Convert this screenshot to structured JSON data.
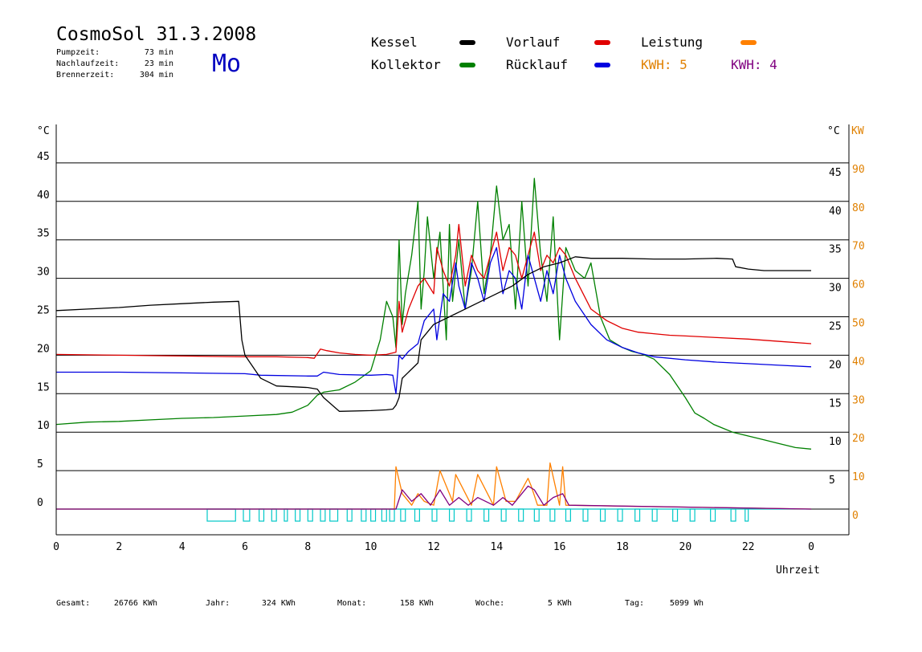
{
  "header": {
    "title": "CosmoSol 31.3.2008",
    "weekday": "Mo",
    "stats": [
      {
        "label": "Pumpzeit:",
        "value": "73 min"
      },
      {
        "label": "Nachlaufzeit:",
        "value": "23 min"
      },
      {
        "label": "Brennerzeit:",
        "value": "304 min"
      }
    ]
  },
  "legend": {
    "items": [
      {
        "label": "Kessel",
        "color": "#000000"
      },
      {
        "label": "Vorlauf",
        "color": "#e00000"
      },
      {
        "label": "Leistung",
        "color": "#ff8000"
      },
      {
        "label": "Kollektor",
        "color": "#008000"
      },
      {
        "label": "Rücklauf",
        "color": "#0000e0"
      }
    ],
    "kwh": [
      {
        "label": "KWH: 5",
        "color": "#e08000"
      },
      {
        "label": "KWH: 4",
        "color": "#800080"
      }
    ]
  },
  "footer": [
    {
      "label": "Gesamt:",
      "value": "26766 KWh"
    },
    {
      "label": "Jahr:",
      "value": "324 KWh"
    },
    {
      "label": "Monat:",
      "value": "158 KWh"
    },
    {
      "label": "Woche:",
      "value": "5 KWh"
    },
    {
      "label": "Tag:",
      "value": "5099 Wh"
    }
  ],
  "chart_data": {
    "type": "line",
    "xlabel": "Uhrzeit",
    "ylabel": "°C",
    "y2label": "KW",
    "ylabel_right": "°C",
    "xlim": [
      0,
      24
    ],
    "ylim": [
      0,
      50
    ],
    "y2lim": [
      0,
      100
    ],
    "grid": true,
    "x_ticks": [
      "0",
      "2",
      "4",
      "6",
      "8",
      "10",
      "12",
      "14",
      "16",
      "18",
      "20",
      "22",
      "0"
    ],
    "y_ticks": [
      "0",
      "5",
      "10",
      "15",
      "20",
      "25",
      "30",
      "35",
      "40",
      "45"
    ],
    "y_ticks_right": [
      "5",
      "10",
      "15",
      "20",
      "25",
      "30",
      "35",
      "40",
      "45"
    ],
    "y2_ticks": [
      "0",
      "10",
      "20",
      "30",
      "40",
      "50",
      "60",
      "70",
      "80",
      "90"
    ],
    "series": [
      {
        "name": "Kollektor",
        "color": "#008000",
        "x": [
          0,
          1,
          2,
          3,
          4,
          5,
          6,
          7,
          7.5,
          8,
          8.3,
          8.5,
          9,
          9.5,
          10,
          10.3,
          10.5,
          10.7,
          10.8,
          10.9,
          11,
          11.1,
          11.3,
          11.5,
          11.6,
          11.7,
          11.8,
          12,
          12.2,
          12.4,
          12.5,
          12.6,
          12.8,
          13,
          13.2,
          13.4,
          13.6,
          13.8,
          14,
          14.2,
          14.4,
          14.6,
          14.8,
          15,
          15.2,
          15.4,
          15.6,
          15.8,
          16,
          16.2,
          16.5,
          16.8,
          17,
          17.3,
          17.6,
          18,
          18.3,
          18.6,
          19,
          19.5,
          20,
          20.3,
          20.6,
          20.9,
          21.2,
          21.5,
          22,
          22.5,
          23,
          23.5,
          24
        ],
        "y": [
          11,
          11.3,
          11.4,
          11.6,
          11.8,
          11.9,
          12.1,
          12.3,
          12.6,
          13.5,
          14.8,
          15.2,
          15.5,
          16.5,
          18,
          22,
          27,
          25,
          21,
          35,
          24,
          28,
          33,
          40,
          26,
          31,
          38,
          30,
          36,
          22,
          37,
          27,
          35,
          26,
          31,
          40,
          28,
          33,
          42,
          35,
          37,
          26,
          40,
          29,
          43,
          33,
          27,
          38,
          22,
          34,
          31,
          30,
          32,
          25,
          22,
          21,
          20.5,
          20.2,
          19.5,
          17.5,
          14.5,
          12.5,
          11.8,
          11,
          10.5,
          10,
          9.5,
          9,
          8.5,
          8,
          7.8
        ]
      },
      {
        "name": "Vorlauf",
        "color": "#e00000",
        "x": [
          0,
          2,
          4,
          6,
          7,
          8,
          8.2,
          8.4,
          8.6,
          9,
          9.5,
          10,
          10.5,
          10.8,
          10.9,
          11,
          11.2,
          11.5,
          11.7,
          12,
          12.1,
          12.3,
          12.5,
          12.7,
          12.8,
          13,
          13.2,
          13.4,
          13.6,
          13.8,
          14,
          14.2,
          14.4,
          14.6,
          14.8,
          15,
          15.2,
          15.4,
          15.6,
          15.8,
          16,
          16.2,
          16.5,
          17,
          17.5,
          18,
          18.5,
          19,
          19.5,
          20,
          21,
          22,
          23,
          24
        ],
        "y": [
          20.1,
          20,
          19.9,
          19.8,
          19.8,
          19.7,
          19.6,
          20.8,
          20.6,
          20.3,
          20.1,
          20,
          20.1,
          20.4,
          27,
          23,
          26,
          29,
          30,
          28,
          34,
          31,
          29,
          33,
          37,
          29,
          33,
          31,
          30,
          33,
          36,
          31,
          34,
          33,
          30,
          33,
          36,
          31,
          33,
          32,
          34,
          33,
          30,
          26,
          24.5,
          23.5,
          23,
          22.8,
          22.6,
          22.5,
          22.3,
          22.1,
          21.8,
          21.5
        ]
      },
      {
        "name": "Rücklauf",
        "color": "#0000e0",
        "x": [
          0,
          2,
          4,
          6,
          6.5,
          8,
          8.3,
          8.5,
          9,
          10,
          10.5,
          10.7,
          10.8,
          10.9,
          11,
          11.2,
          11.5,
          11.7,
          12,
          12.1,
          12.3,
          12.5,
          12.7,
          12.8,
          13,
          13.2,
          13.4,
          13.6,
          13.8,
          14,
          14.2,
          14.4,
          14.6,
          14.8,
          15,
          15.2,
          15.4,
          15.6,
          15.8,
          16,
          16.2,
          16.5,
          17,
          17.5,
          18,
          18.5,
          19,
          20,
          21,
          22,
          23,
          24
        ],
        "y": [
          17.8,
          17.8,
          17.7,
          17.6,
          17.4,
          17.3,
          17.3,
          17.8,
          17.5,
          17.4,
          17.5,
          17.4,
          15,
          20,
          19.5,
          20.5,
          21.5,
          24.5,
          26,
          22,
          28,
          27,
          32,
          29,
          26,
          32,
          30,
          27,
          32,
          34,
          28,
          31,
          30,
          26,
          33,
          30,
          27,
          31,
          28,
          33,
          30,
          27,
          24,
          22,
          21,
          20.3,
          19.8,
          19.4,
          19.1,
          18.9,
          18.7,
          18.5
        ]
      },
      {
        "name": "Kessel",
        "color": "#000000",
        "x": [
          0,
          1,
          2,
          3,
          4,
          5,
          5.8,
          5.9,
          6,
          6.5,
          7,
          8,
          8.3,
          8.5,
          9,
          10,
          10.5,
          10.7,
          10.8,
          10.9,
          11,
          11.5,
          11.6,
          12,
          12.5,
          13,
          13.5,
          14,
          14.5,
          15,
          15.5,
          16,
          16.5,
          17,
          18,
          19,
          20,
          21,
          21.5,
          21.6,
          22,
          22.5,
          23,
          24
        ],
        "y": [
          25.8,
          26,
          26.2,
          26.5,
          26.7,
          26.9,
          27,
          22,
          20,
          17,
          16,
          15.8,
          15.6,
          14.5,
          12.7,
          12.8,
          12.9,
          13,
          13.5,
          14.5,
          17,
          19,
          22,
          24,
          25,
          26,
          27,
          28,
          29,
          30.5,
          31.5,
          32,
          32.8,
          32.6,
          32.6,
          32.5,
          32.5,
          32.6,
          32.5,
          31.5,
          31.2,
          31,
          31,
          31
        ]
      },
      {
        "name": "Leistung",
        "color": "#ff8000",
        "axis": "kw",
        "x": [
          0,
          10.7,
          10.75,
          10.8,
          11,
          11.3,
          11.5,
          11.7,
          12,
          12.2,
          12.6,
          12.7,
          13.2,
          13.4,
          13.9,
          14,
          14.3,
          14.6,
          15,
          15.1,
          15.3,
          15.6,
          15.7,
          16,
          16.1,
          16.2,
          24
        ],
        "y": [
          0,
          0,
          0,
          11,
          4,
          1,
          4,
          2,
          1,
          10,
          2,
          9,
          1,
          9,
          1,
          11,
          2,
          2,
          8,
          6,
          1,
          1,
          12,
          1,
          11,
          1,
          0
        ]
      },
      {
        "name": "Leistung (2)",
        "color": "#800080",
        "axis": "kw",
        "x": [
          0,
          10.8,
          11,
          11.3,
          11.6,
          11.9,
          12.2,
          12.5,
          12.8,
          13.1,
          13.4,
          13.9,
          14.2,
          14.5,
          15,
          15.2,
          15.5,
          15.8,
          16.1,
          16.3,
          24
        ],
        "y": [
          0,
          0,
          5,
          2,
          4,
          1,
          5,
          1,
          3,
          1,
          3,
          1,
          3,
          1,
          6,
          5,
          1,
          3,
          4,
          1,
          0
        ]
      },
      {
        "name": "Pumpe",
        "color": "#00c8c8",
        "axis": "pump",
        "segments": [
          [
            4.8,
            5.7
          ],
          [
            5.95,
            6.15
          ],
          [
            6.45,
            6.6
          ],
          [
            6.85,
            7.0
          ],
          [
            7.25,
            7.35
          ],
          [
            7.6,
            7.75
          ],
          [
            8.0,
            8.15
          ],
          [
            8.4,
            8.55
          ],
          [
            8.7,
            8.95
          ],
          [
            9.25,
            9.4
          ],
          [
            9.7,
            9.85
          ],
          [
            10.0,
            10.15
          ],
          [
            10.35,
            10.5
          ],
          [
            10.6,
            10.75
          ],
          [
            10.95,
            11.1
          ],
          [
            11.4,
            11.55
          ],
          [
            11.95,
            12.1
          ],
          [
            12.5,
            12.65
          ],
          [
            13.05,
            13.2
          ],
          [
            13.6,
            13.75
          ],
          [
            14.15,
            14.3
          ],
          [
            14.7,
            14.85
          ],
          [
            15.2,
            15.35
          ],
          [
            15.7,
            15.85
          ],
          [
            16.2,
            16.35
          ],
          [
            16.75,
            16.9
          ],
          [
            17.3,
            17.45
          ],
          [
            17.85,
            18.0
          ],
          [
            18.4,
            18.55
          ],
          [
            18.95,
            19.1
          ],
          [
            19.6,
            19.75
          ],
          [
            20.15,
            20.3
          ],
          [
            20.8,
            20.95
          ],
          [
            21.45,
            21.6
          ],
          [
            21.9,
            22.0
          ]
        ]
      }
    ]
  }
}
